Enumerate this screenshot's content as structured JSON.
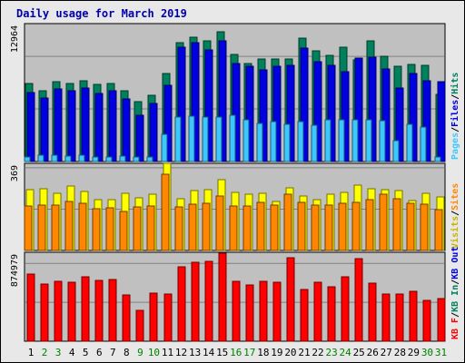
{
  "chart_data": {
    "type": "bar",
    "title": "Daily usage for March 2019",
    "days": [
      "1",
      "2",
      "3",
      "4",
      "5",
      "6",
      "7",
      "8",
      "9",
      "10",
      "11",
      "12",
      "13",
      "14",
      "15",
      "16",
      "17",
      "18",
      "19",
      "20",
      "21",
      "22",
      "23",
      "24",
      "25",
      "26",
      "27",
      "28",
      "29",
      "30",
      "31"
    ],
    "weekend_days": [
      "2",
      "3",
      "9",
      "10",
      "16",
      "17",
      "23",
      "24",
      "30",
      "31"
    ],
    "panels": [
      {
        "id": "pages-files-hits",
        "scale_label": "12964",
        "scale_max": 17000,
        "labels": [
          "Pages",
          "/",
          "Files",
          "/",
          "Hits"
        ],
        "series": [
          {
            "name": "Hits",
            "color": "#00805c",
            "values": [
              9600,
              8700,
              9800,
              9600,
              10000,
              9500,
              9600,
              8700,
              7400,
              8200,
              10900,
              14600,
              15300,
              14900,
              16000,
              13200,
              12100,
              12600,
              12600,
              12600,
              15200,
              13600,
              13100,
              14100,
              12500,
              14900,
              13000,
              11700,
              12000,
              11900,
              8300
            ]
          },
          {
            "name": "Files",
            "color": "#0000e0",
            "values": [
              8500,
              7800,
              8900,
              8700,
              9100,
              8400,
              8700,
              7700,
              5700,
              7200,
              9400,
              14100,
              14600,
              13800,
              14900,
              12100,
              11700,
              11300,
              11700,
              11800,
              14000,
              12300,
              11800,
              11100,
              12700,
              12900,
              11400,
              9100,
              10900,
              10000,
              9800
            ]
          },
          {
            "name": "Pages",
            "color": "#3cc8ff",
            "values": [
              600,
              800,
              800,
              700,
              800,
              600,
              600,
              700,
              600,
              600,
              3300,
              5500,
              5600,
              5500,
              5500,
              5700,
              5100,
              4700,
              4900,
              4600,
              4900,
              4500,
              5200,
              5100,
              5100,
              5200,
              5000,
              2600,
              4600,
              4200,
              600
            ]
          }
        ]
      },
      {
        "id": "visits-sites",
        "scale_label": "369",
        "scale_max": 389,
        "labels": [
          "Visits",
          "/",
          "Sites"
        ],
        "series": [
          {
            "name": "Visits",
            "color": "#ffff00",
            "values": [
              272,
              274,
              257,
              287,
              262,
              225,
              227,
              256,
              233,
              253,
              389,
              230,
              269,
              271,
              316,
              259,
              250,
              255,
              220,
              281,
              244,
              227,
              253,
              260,
              293,
              276,
              270,
              266,
              221,
              256,
              240
            ]
          },
          {
            "name": "Sites",
            "color": "#ff8800",
            "values": [
              197,
              204,
              203,
              219,
              212,
              188,
              190,
              173,
              193,
              200,
              342,
              193,
              207,
              211,
              245,
              199,
              197,
              213,
              203,
              253,
              216,
              204,
              203,
              211,
              213,
              227,
              252,
              231,
              210,
              205,
              182
            ]
          }
        ]
      },
      {
        "id": "kbf-kbin-kbout",
        "scale_label": "874979",
        "scale_max": 1000000,
        "labels": [
          "KB F",
          "/",
          "KB In",
          "/",
          "KB Out"
        ],
        "series": [
          {
            "name": "KB F",
            "color": "#ff0000",
            "values": [
              750000,
              640000,
              670000,
              660000,
              720000,
              680000,
              690000,
              520000,
              350000,
              540000,
              535000,
              837000,
              888000,
              902000,
              988000,
              672000,
              634000,
              672000,
              664000,
              937000,
              583000,
              667000,
              610000,
              720000,
              925000,
              658000,
              526000,
              535000,
              560000,
              458000,
              483000
            ]
          }
        ]
      }
    ]
  }
}
